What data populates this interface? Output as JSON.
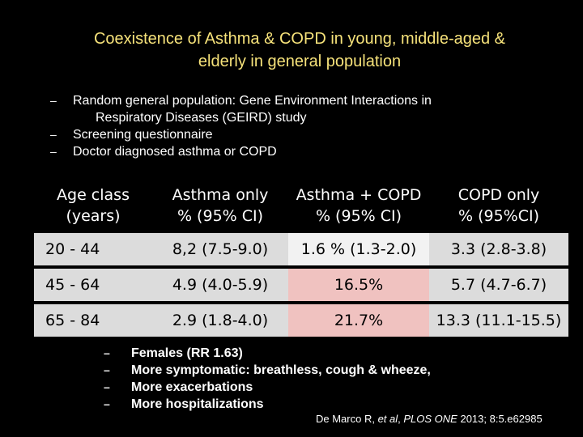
{
  "title_line1": "Coexistence of Asthma & COPD in young, middle-aged &",
  "title_line2": "elderly in general population",
  "bullets_top": [
    {
      "text": "Random general population: Gene Environment Interactions in",
      "cont": "Respiratory Diseases (GEIRD) study"
    },
    {
      "text": "Screening questionnaire"
    },
    {
      "text": "Doctor diagnosed asthma or COPD"
    }
  ],
  "dash": "–",
  "table": {
    "headers": [
      [
        "Age class",
        "(years)"
      ],
      [
        "Asthma only",
        "% (95% CI)"
      ],
      [
        "Asthma + COPD",
        "% (95% CI)"
      ],
      [
        "COPD only",
        "% (95%CI)"
      ]
    ],
    "rows": [
      [
        "20 - 44",
        "8,2   (7.5-9.0)",
        "1.6 % (1.3-2.0)",
        "3.3   (2.8-3.8)"
      ],
      [
        "45 - 64",
        "4.9   (4.0-5.9)",
        "16.5%",
        "5.7   (4.7-6.7)"
      ],
      [
        "65 - 84",
        "2.9   (1.8-4.0)",
        "21.7%",
        "13.3 (11.1-15.5)"
      ]
    ]
  },
  "bullets_bottom": [
    "Females (RR 1.63)",
    "More symptomatic: breathless, cough & wheeze,",
    "More exacerbations",
    "More hospitalizations"
  ],
  "citation": {
    "authors": "De Marco R, ",
    "etal": "et al",
    "sep": ", ",
    "journal": "PLOS ONE",
    "rest": "  2013; 8:5.e62985"
  },
  "colors": {
    "title": "#f6e27a",
    "cell_gray": "#dcdcdc",
    "cell_pink": "#f0c2c0"
  }
}
